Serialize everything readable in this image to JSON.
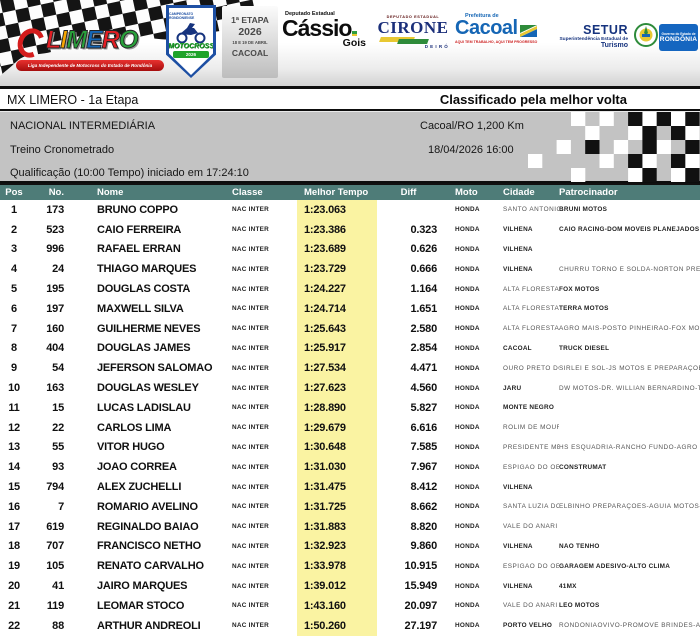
{
  "banner": {
    "limero": {
      "letters": [
        {
          "ch": "L",
          "color": "#e31e24"
        },
        {
          "ch": "I",
          "color": "#f7a600"
        },
        {
          "ch": "M",
          "color": "#29a13b"
        },
        {
          "ch": "E",
          "color": "#1566b5"
        },
        {
          "ch": "R",
          "color": "#e31e24"
        },
        {
          "ch": "O",
          "color": "#29a13b"
        }
      ],
      "tagline": "Liga Independente de Motocross do Estado de Rondônia"
    },
    "badge": {
      "line1": "CAMPEONATO RONDONIENSE",
      "title": "MOTOCROSS",
      "year": "2026"
    },
    "etapa_box": {
      "line1": "1ª ETAPA",
      "line2": "2026",
      "line3": "18 E 19 DE ABRIL",
      "line4": "CACOAL"
    },
    "cassio": {
      "above": "Deputado Estadual",
      "name": "Cássio",
      "surname": "Gois"
    },
    "cirone": {
      "above": "DEPUTADO ESTADUAL",
      "name": "CIRONE",
      "below": "DEIRÓ"
    },
    "cacoal": {
      "above": "Prefeitura de",
      "name": "Cacoal",
      "below": "AQUI TEM TRABALHO, AQUI TEM PROGRESSO"
    },
    "setur": {
      "name": "SETUR",
      "line2": "Superintendência Estadual de",
      "line3": "Turismo"
    },
    "governo": {
      "line1": "Governo do Estado de",
      "line2": "RONDÔNIA"
    }
  },
  "title_bar": {
    "left": "MX LIMERO - 1a Etapa",
    "right": "Classificado pela melhor volta"
  },
  "info": {
    "category": "NACIONAL INTERMEDIÁRIA",
    "location": "Cacoal/RO 1,200 Km",
    "session": "Treino Cronometrado",
    "datetime": "18/04/2026 16:00",
    "qualification": "Qualificação (10:00 Tempo) iniciado em 17:24:10"
  },
  "colors": {
    "header_bg": "#4e7c78",
    "tempo_highlight": "#faf3a2",
    "info_bg": "#c3c3c3"
  },
  "table": {
    "columns": [
      "Pos",
      "No.",
      "Nome",
      "Classe",
      "Melhor Tempo",
      "Diff",
      "Moto",
      "Cidade",
      "Patrocinador"
    ],
    "rows": [
      {
        "pos": "1",
        "no": "173",
        "nome": "BRUNO COPPO",
        "classe": "NAC INTER",
        "tempo": "1:23.063",
        "diff": "",
        "moto": "HONDA",
        "cidade": "SANTO ANTÔNIO",
        "patrocinador": "BRUNI MOTOS"
      },
      {
        "pos": "2",
        "no": "523",
        "nome": "CAIO FERREIRA",
        "classe": "NAC INTER",
        "tempo": "1:23.386",
        "diff": "0.323",
        "moto": "HONDA",
        "cidade": "VILHENA",
        "patrocinador": "CAIO RACING-DOM MÓVEIS PLANEJADOS"
      },
      {
        "pos": "3",
        "no": "996",
        "nome": "RAFAEL ERRAN",
        "classe": "NAC INTER",
        "tempo": "1:23.689",
        "diff": "0.626",
        "moto": "HONDA",
        "cidade": "VILHENA",
        "patrocinador": ""
      },
      {
        "pos": "4",
        "no": "24",
        "nome": "THIAGO MARQUES",
        "classe": "NAC INTER",
        "tempo": "1:23.729",
        "diff": "0.666",
        "moto": "HONDA",
        "cidade": "VILHENA",
        "patrocinador": "CHURRU TORNO E SOLDA-NORTON PREPARAÇÕ"
      },
      {
        "pos": "5",
        "no": "195",
        "nome": "DOUGLAS COSTA",
        "classe": "NAC INTER",
        "tempo": "1:24.227",
        "diff": "1.164",
        "moto": "HONDA",
        "cidade": "ALTA FLORESTA D",
        "patrocinador": "FOX MOTOS"
      },
      {
        "pos": "6",
        "no": "197",
        "nome": "MAXWELL SILVA",
        "classe": "NAC INTER",
        "tempo": "1:24.714",
        "diff": "1.651",
        "moto": "HONDA",
        "cidade": "ALTA FLORESTA D",
        "patrocinador": "TERRA MOTOS"
      },
      {
        "pos": "7",
        "no": "160",
        "nome": "GUILHERME NEVES",
        "classe": "NAC INTER",
        "tempo": "1:25.643",
        "diff": "2.580",
        "moto": "HONDA",
        "cidade": "ALTA FLORESTA D",
        "patrocinador": "AGRO MAIS-POSTO PINHEIRÃO-FOX MOTOS"
      },
      {
        "pos": "8",
        "no": "404",
        "nome": "DOUGLAS JAMES",
        "classe": "NAC INTER",
        "tempo": "1:25.917",
        "diff": "2.854",
        "moto": "HONDA",
        "cidade": "CACOAL",
        "patrocinador": "TRUCK DIESEL"
      },
      {
        "pos": "9",
        "no": "54",
        "nome": "JEFERSON SALOMAO",
        "classe": "NAC INTER",
        "tempo": "1:27.534",
        "diff": "4.471",
        "moto": "HONDA",
        "cidade": "OURO PRETO DO",
        "patrocinador": "SIRLEI E SOL-JS MOTOS E PREPARAÇÕES"
      },
      {
        "pos": "10",
        "no": "163",
        "nome": "DOUGLAS WESLEY",
        "classe": "NAC INTER",
        "tempo": "1:27.623",
        "diff": "4.560",
        "moto": "HONDA",
        "cidade": "JARU",
        "patrocinador": "DW MOTOS-DR. WILLIAN BERNARDINO-TERERE"
      },
      {
        "pos": "11",
        "no": "15",
        "nome": "LUCAS LADISLAU",
        "classe": "NAC INTER",
        "tempo": "1:28.890",
        "diff": "5.827",
        "moto": "HONDA",
        "cidade": "MONTE NEGRO",
        "patrocinador": ""
      },
      {
        "pos": "12",
        "no": "22",
        "nome": "CARLOS LIMA",
        "classe": "NAC INTER",
        "tempo": "1:29.679",
        "diff": "6.616",
        "moto": "HONDA",
        "cidade": "ROLIM DE MOUR",
        "patrocinador": ""
      },
      {
        "pos": "13",
        "no": "55",
        "nome": "VITOR HUGO",
        "classe": "NAC INTER",
        "tempo": "1:30.648",
        "diff": "7.585",
        "moto": "HONDA",
        "cidade": "PRESIDENTE MÉI",
        "patrocinador": "HS ESQUADRIA-RANCHO FUNDO-AGRO COSTAL"
      },
      {
        "pos": "14",
        "no": "93",
        "nome": "JOAO CORREA",
        "classe": "NAC INTER",
        "tempo": "1:31.030",
        "diff": "7.967",
        "moto": "HONDA",
        "cidade": "ESPIGÃO DO OES",
        "patrocinador": "CONSTRUMAT"
      },
      {
        "pos": "15",
        "no": "794",
        "nome": "ALEX ZUCHELLI",
        "classe": "NAC INTER",
        "tempo": "1:31.475",
        "diff": "8.412",
        "moto": "HONDA",
        "cidade": "VILHENA",
        "patrocinador": ""
      },
      {
        "pos": "16",
        "no": "7",
        "nome": "ROMARIO AVELINO",
        "classe": "NAC INTER",
        "tempo": "1:31.725",
        "diff": "8.662",
        "moto": "HONDA",
        "cidade": "SANTA LUZIA DO",
        "patrocinador": "ELBINHO PREPARAÇÕES-ÁGUIA MOTOS-VAGNER"
      },
      {
        "pos": "17",
        "no": "619",
        "nome": "REGINALDO BAIAO",
        "classe": "NAC INTER",
        "tempo": "1:31.883",
        "diff": "8.820",
        "moto": "HONDA",
        "cidade": "VALE DO ANARI",
        "patrocinador": ""
      },
      {
        "pos": "18",
        "no": "707",
        "nome": "FRANCISCO NETHO",
        "classe": "NAC INTER",
        "tempo": "1:32.923",
        "diff": "9.860",
        "moto": "HONDA",
        "cidade": "VILHENA",
        "patrocinador": "NÃO TENHO"
      },
      {
        "pos": "19",
        "no": "105",
        "nome": "RENATO CARVALHO",
        "classe": "NAC INTER",
        "tempo": "1:33.978",
        "diff": "10.915",
        "moto": "HONDA",
        "cidade": "ESPIGÃO DO OES",
        "patrocinador": "GARAGEM ADESIVO-ALTO CLIMA"
      },
      {
        "pos": "20",
        "no": "41",
        "nome": "JAIRO MARQUES",
        "classe": "NAC INTER",
        "tempo": "1:39.012",
        "diff": "15.949",
        "moto": "HONDA",
        "cidade": "VILHENA",
        "patrocinador": "41MX"
      },
      {
        "pos": "21",
        "no": "119",
        "nome": "LEOMAR STOCO",
        "classe": "NAC INTER",
        "tempo": "1:43.160",
        "diff": "20.097",
        "moto": "HONDA",
        "cidade": "VALE DO ANARI",
        "patrocinador": "LÉO MOTOS"
      },
      {
        "pos": "22",
        "no": "88",
        "nome": "ARTHUR ANDREOLI",
        "classe": "NAC INTER",
        "tempo": "1:50.260",
        "diff": "27.197",
        "moto": "HONDA",
        "cidade": "PORTO VELHO",
        "patrocinador": "RONDÔNIAOVIVO-PROMOVE BRINDES-ACADEM"
      }
    ]
  }
}
